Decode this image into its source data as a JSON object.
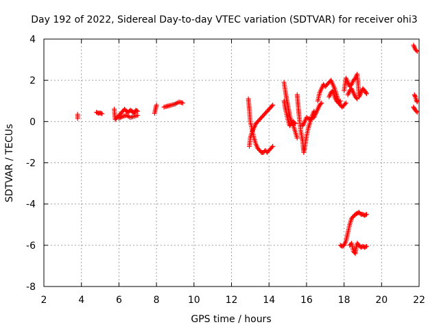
{
  "chart_data": {
    "type": "scatter",
    "title": "Day 192 of 2022, Sidereal Day-to-day VTEC variation (SDTVAR) for receiver ohi3",
    "xlabel": "GPS time / hours",
    "ylabel": "SDTVAR / TECUs",
    "xlim": [
      2,
      22
    ],
    "ylim": [
      -8,
      4
    ],
    "xticks": [
      "2",
      "4",
      "6",
      "8",
      "10",
      "12",
      "14",
      "16",
      "18",
      "20",
      "22"
    ],
    "yticks": [
      "4",
      "2",
      "0",
      "-2",
      "-4",
      "-6",
      "-8"
    ],
    "grid": true,
    "marker": "+",
    "color": "#ff0000",
    "series": [
      {
        "name": "SDTVAR",
        "segments": [
          [
            [
              3.8,
              0.35
            ],
            [
              3.8,
              0.15
            ]
          ],
          [
            [
              4.8,
              0.45
            ],
            [
              4.9,
              0.4
            ],
            [
              5.0,
              0.42
            ],
            [
              5.1,
              0.38
            ]
          ],
          [
            [
              5.75,
              0.6
            ],
            [
              5.8,
              0.1
            ],
            [
              5.9,
              0.2
            ],
            [
              6.0,
              0.3
            ],
            [
              6.1,
              0.4
            ],
            [
              6.2,
              0.5
            ],
            [
              6.3,
              0.6
            ],
            [
              6.4,
              0.5
            ],
            [
              6.5,
              0.45
            ],
            [
              6.6,
              0.55
            ],
            [
              6.7,
              0.5
            ],
            [
              6.8,
              0.4
            ],
            [
              6.9,
              0.55
            ],
            [
              7.0,
              0.5
            ]
          ],
          [
            [
              6.0,
              0.15
            ],
            [
              6.2,
              0.25
            ],
            [
              6.4,
              0.3
            ],
            [
              6.6,
              0.2
            ],
            [
              6.8,
              0.25
            ],
            [
              7.0,
              0.3
            ]
          ],
          [
            [
              7.9,
              0.4
            ],
            [
              7.95,
              0.6
            ],
            [
              8.0,
              0.8
            ]
          ],
          [
            [
              8.4,
              0.7
            ],
            [
              8.6,
              0.75
            ],
            [
              8.8,
              0.8
            ],
            [
              9.0,
              0.85
            ],
            [
              9.2,
              0.95
            ],
            [
              9.4,
              0.9
            ]
          ],
          [
            [
              12.9,
              1.1
            ],
            [
              12.95,
              0.6
            ],
            [
              13.0,
              0.0
            ],
            [
              13.1,
              -0.4
            ],
            [
              13.2,
              -0.8
            ],
            [
              13.3,
              -1.1
            ],
            [
              13.4,
              -1.3
            ],
            [
              13.5,
              -1.4
            ],
            [
              13.6,
              -1.5
            ],
            [
              13.7,
              -1.5
            ],
            [
              13.8,
              -1.4
            ],
            [
              13.9,
              -1.5
            ],
            [
              14.0,
              -1.4
            ],
            [
              14.1,
              -1.3
            ],
            [
              14.2,
              -1.2
            ]
          ],
          [
            [
              12.95,
              -1.2
            ],
            [
              13.0,
              -0.8
            ],
            [
              13.1,
              -0.5
            ],
            [
              13.2,
              -0.3
            ],
            [
              13.3,
              -0.1
            ],
            [
              13.4,
              0.0
            ],
            [
              13.5,
              0.1
            ],
            [
              13.6,
              0.2
            ],
            [
              13.7,
              0.3
            ],
            [
              13.8,
              0.4
            ],
            [
              13.9,
              0.5
            ],
            [
              14.0,
              0.6
            ],
            [
              14.1,
              0.7
            ],
            [
              14.2,
              0.8
            ]
          ],
          [
            [
              14.8,
              1.9
            ],
            [
              14.85,
              1.6
            ],
            [
              14.9,
              1.3
            ],
            [
              15.0,
              0.8
            ],
            [
              15.1,
              0.3
            ],
            [
              15.2,
              0.0
            ],
            [
              15.3,
              -0.2
            ],
            [
              15.4,
              -0.5
            ],
            [
              15.5,
              -0.8
            ]
          ],
          [
            [
              14.8,
              1.0
            ],
            [
              14.9,
              0.5
            ],
            [
              15.0,
              0.1
            ],
            [
              15.1,
              -0.2
            ],
            [
              15.2,
              -0.1
            ],
            [
              15.3,
              0.0
            ],
            [
              15.4,
              -0.1
            ]
          ],
          [
            [
              15.5,
              1.3
            ],
            [
              15.55,
              0.8
            ],
            [
              15.6,
              0.3
            ],
            [
              15.7,
              -0.5
            ],
            [
              15.8,
              -1.0
            ],
            [
              15.85,
              -1.5
            ],
            [
              15.9,
              -1.3
            ],
            [
              16.0,
              -0.7
            ],
            [
              16.1,
              -0.3
            ],
            [
              16.2,
              0.0
            ],
            [
              16.3,
              0.3
            ],
            [
              16.4,
              0.5
            ]
          ],
          [
            [
              15.8,
              -0.2
            ],
            [
              15.9,
              0.0
            ],
            [
              16.0,
              0.2
            ],
            [
              16.2,
              0.1
            ],
            [
              16.4,
              0.2
            ],
            [
              16.6,
              0.6
            ],
            [
              16.7,
              0.8
            ],
            [
              16.8,
              0.9
            ]
          ],
          [
            [
              16.6,
              1.0
            ],
            [
              16.7,
              1.4
            ],
            [
              16.8,
              1.6
            ],
            [
              16.9,
              1.8
            ],
            [
              17.0,
              1.7
            ],
            [
              17.1,
              1.8
            ],
            [
              17.2,
              1.9
            ],
            [
              17.3,
              2.0
            ],
            [
              17.4,
              1.8
            ],
            [
              17.5,
              1.6
            ],
            [
              17.6,
              1.3
            ],
            [
              17.7,
              1.0
            ],
            [
              17.8,
              0.8
            ],
            [
              17.9,
              0.7
            ],
            [
              18.0,
              0.8
            ],
            [
              18.1,
              0.9
            ]
          ],
          [
            [
              17.2,
              1.2
            ],
            [
              17.3,
              1.4
            ],
            [
              17.4,
              1.5
            ],
            [
              17.5,
              1.2
            ],
            [
              17.6,
              1.0
            ],
            [
              17.7,
              0.9
            ],
            [
              17.8,
              1.0
            ]
          ],
          [
            [
              18.0,
              1.5
            ],
            [
              18.05,
              1.8
            ],
            [
              18.1,
              2.1
            ],
            [
              18.2,
              1.9
            ],
            [
              18.3,
              1.7
            ],
            [
              18.4,
              1.8
            ],
            [
              18.5,
              2.0
            ],
            [
              18.6,
              2.1
            ],
            [
              18.7,
              2.3
            ],
            [
              18.75,
              1.8
            ],
            [
              18.8,
              1.2
            ],
            [
              18.9,
              1.4
            ],
            [
              19.0,
              1.6
            ],
            [
              19.1,
              1.5
            ],
            [
              19.2,
              1.35
            ]
          ],
          [
            [
              18.2,
              1.3
            ],
            [
              18.3,
              1.5
            ],
            [
              18.4,
              1.6
            ],
            [
              18.5,
              1.4
            ],
            [
              18.6,
              1.2
            ],
            [
              18.7,
              1.1
            ]
          ],
          [
            [
              17.8,
              -6.0
            ],
            [
              17.9,
              -6.05
            ],
            [
              18.0,
              -6.0
            ],
            [
              18.1,
              -5.8
            ],
            [
              18.15,
              -5.6
            ],
            [
              18.2,
              -5.4
            ],
            [
              18.3,
              -5.0
            ],
            [
              18.4,
              -4.7
            ],
            [
              18.5,
              -4.6
            ],
            [
              18.6,
              -4.5
            ],
            [
              18.7,
              -4.45
            ],
            [
              18.8,
              -4.4
            ],
            [
              18.9,
              -4.5
            ],
            [
              19.0,
              -4.5
            ],
            [
              19.1,
              -4.55
            ],
            [
              19.2,
              -4.5
            ]
          ],
          [
            [
              18.3,
              -6.0
            ],
            [
              18.4,
              -5.9
            ],
            [
              18.5,
              -6.3
            ],
            [
              18.6,
              -6.4
            ],
            [
              18.65,
              -6.1
            ],
            [
              18.7,
              -5.9
            ],
            [
              18.8,
              -6.0
            ],
            [
              18.9,
              -6.1
            ],
            [
              19.0,
              -6.05
            ],
            [
              19.1,
              -6.1
            ],
            [
              19.2,
              -6.05
            ]
          ],
          [
            [
              21.7,
              3.7
            ],
            [
              21.8,
              3.5
            ],
            [
              21.9,
              3.4
            ]
          ],
          [
            [
              21.75,
              1.3
            ],
            [
              21.8,
              1.2
            ],
            [
              21.85,
              1.05
            ],
            [
              21.9,
              0.95
            ]
          ],
          [
            [
              21.7,
              0.7
            ],
            [
              21.8,
              0.55
            ],
            [
              21.9,
              0.45
            ]
          ]
        ]
      }
    ]
  }
}
